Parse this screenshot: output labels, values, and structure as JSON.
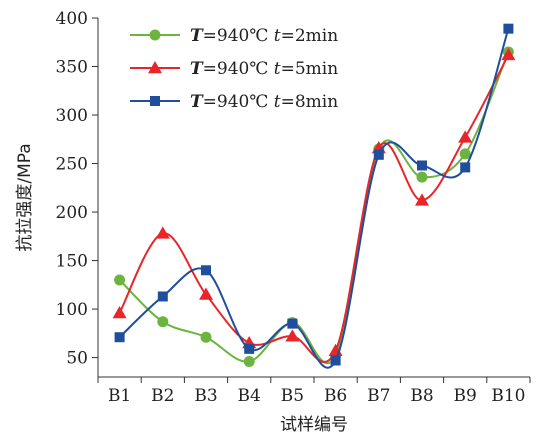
{
  "chart_data": {
    "type": "line",
    "smooth": true,
    "xlabel": "试样编号",
    "ylabel": "抗拉强度/MPa",
    "categories": [
      "B1",
      "B2",
      "B3",
      "B4",
      "B5",
      "B6",
      "B7",
      "B8",
      "B9",
      "B10"
    ],
    "ylim": [
      30,
      400
    ],
    "yticks": [
      50,
      100,
      150,
      200,
      250,
      300,
      350,
      400
    ],
    "grid": false,
    "legend_position": "top-left",
    "series": [
      {
        "name": "T=940℃ t=2min",
        "legend_parts": [
          "T",
          "=940℃ ",
          "t",
          "=2min"
        ],
        "color": "#6cb33f",
        "marker": "circle",
        "values": [
          130,
          87,
          71,
          46,
          86,
          52,
          265,
          236,
          260,
          365
        ]
      },
      {
        "name": "T=940℃ t=5min",
        "legend_parts": [
          "T",
          "=940℃ ",
          "t",
          "=5min"
        ],
        "color": "#e8262a",
        "marker": "triangle",
        "values": [
          96,
          178,
          115,
          65,
          72,
          57,
          266,
          212,
          277,
          362
        ]
      },
      {
        "name": "T=940℃ t=8min",
        "legend_parts": [
          "T",
          "=940℃ ",
          "t",
          "=8min"
        ],
        "color": "#1f4e9c",
        "marker": "square",
        "values": [
          71,
          113,
          140,
          59,
          85,
          47,
          259,
          248,
          246,
          389
        ]
      }
    ]
  }
}
